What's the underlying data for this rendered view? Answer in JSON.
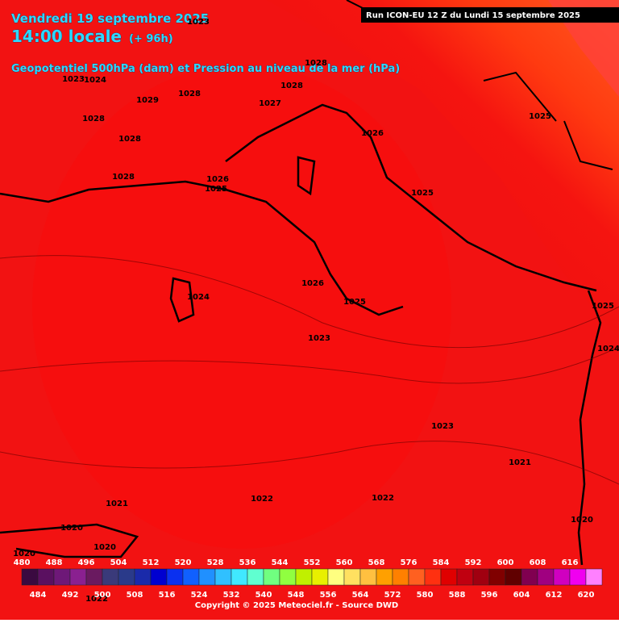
{
  "header": {
    "date": "Vendredi 19 septembre 2025",
    "time": "14:00 locale",
    "lead": "(+ 96h)",
    "field": "Geopotentiel 500hPa (dam) et Pression au niveau de la mer (hPa)",
    "run": "Run ICON-EU 12 Z du Lundi 15 septembre 2025"
  },
  "isobar_labels": [
    "1023",
    "1028",
    "1023",
    "1024",
    "1029",
    "1028",
    "1028",
    "1027",
    "1028",
    "1028",
    "1028",
    "1026",
    "1025",
    "1026",
    "1025",
    "1025",
    "1024",
    "1026",
    "1025",
    "1023",
    "1025",
    "1024",
    "1023",
    "1021",
    "1021",
    "1022",
    "1022",
    "1020",
    "1020",
    "1020",
    "1022",
    "1020"
  ],
  "colorbar": {
    "ticks": [
      480,
      484,
      488,
      492,
      496,
      500,
      504,
      508,
      512,
      516,
      520,
      524,
      528,
      532,
      536,
      540,
      544,
      548,
      552,
      556,
      560,
      564,
      568,
      572,
      576,
      580,
      584,
      588,
      592,
      596,
      600,
      604,
      608,
      612,
      616,
      620
    ],
    "colors": [
      "#3a0a40",
      "#5a1060",
      "#6e1878",
      "#8a2090",
      "#6a1a60",
      "#3a3a7a",
      "#2a3a8a",
      "#1a2aaa",
      "#0000d0",
      "#0a30f0",
      "#1060ff",
      "#2090ff",
      "#30c0ff",
      "#40e8ff",
      "#60ffd0",
      "#70ff80",
      "#90ff40",
      "#c0f000",
      "#e8f000",
      "#ffff80",
      "#ffe060",
      "#ffc040",
      "#ffa000",
      "#ff8000",
      "#ff6020",
      "#ff3010",
      "#e00000",
      "#c00010",
      "#a00010",
      "#800000",
      "#600000",
      "#800050",
      "#a00080",
      "#d000c0",
      "#f000f0",
      "#ff80ff"
    ]
  },
  "footer": {
    "copyright": "Copyright © 2025 Meteociel.fr - Source DWD"
  }
}
